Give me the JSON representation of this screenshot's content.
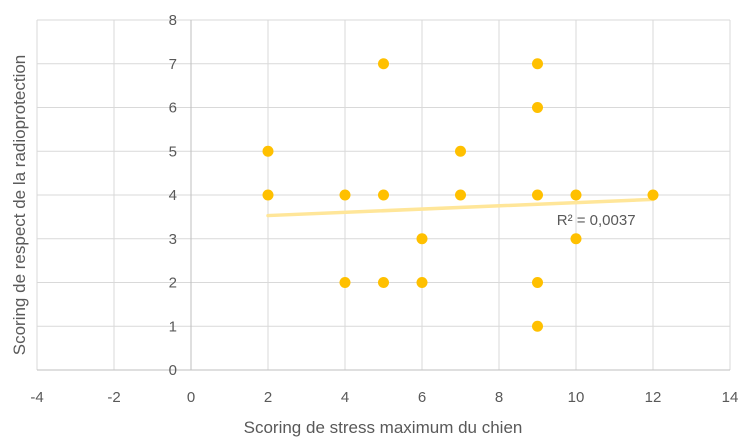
{
  "chart_data": {
    "type": "scatter",
    "title": "",
    "xlabel": "Scoring de stress maximum du chien",
    "ylabel": "Scoring de respect de la radioprotection",
    "xlim": [
      -4,
      14
    ],
    "ylim": [
      0,
      8
    ],
    "x_ticks": [
      -4,
      -2,
      0,
      2,
      4,
      6,
      8,
      10,
      12,
      14
    ],
    "y_ticks": [
      0,
      1,
      2,
      3,
      4,
      5,
      6,
      7,
      8
    ],
    "grid": true,
    "legend": "none",
    "colors": {
      "points": "#ffc000",
      "trendline": "#ffe699",
      "grid": "#d9d9d9",
      "text": "#595959"
    },
    "series": [
      {
        "points": [
          {
            "x": 2,
            "y": 5
          },
          {
            "x": 2,
            "y": 4
          },
          {
            "x": 4,
            "y": 4
          },
          {
            "x": 4,
            "y": 2
          },
          {
            "x": 5,
            "y": 7
          },
          {
            "x": 5,
            "y": 4
          },
          {
            "x": 5,
            "y": 2
          },
          {
            "x": 6,
            "y": 3
          },
          {
            "x": 6,
            "y": 2
          },
          {
            "x": 7,
            "y": 5
          },
          {
            "x": 7,
            "y": 4
          },
          {
            "x": 9,
            "y": 7
          },
          {
            "x": 9,
            "y": 6
          },
          {
            "x": 9,
            "y": 4
          },
          {
            "x": 9,
            "y": 2
          },
          {
            "x": 9,
            "y": 1
          },
          {
            "x": 10,
            "y": 4
          },
          {
            "x": 10,
            "y": 3
          },
          {
            "x": 12,
            "y": 4
          }
        ]
      }
    ],
    "trendline": {
      "type": "linear",
      "x": [
        2,
        12
      ],
      "y": [
        3.53,
        3.9
      ],
      "label": "R² = 0,0037"
    }
  }
}
